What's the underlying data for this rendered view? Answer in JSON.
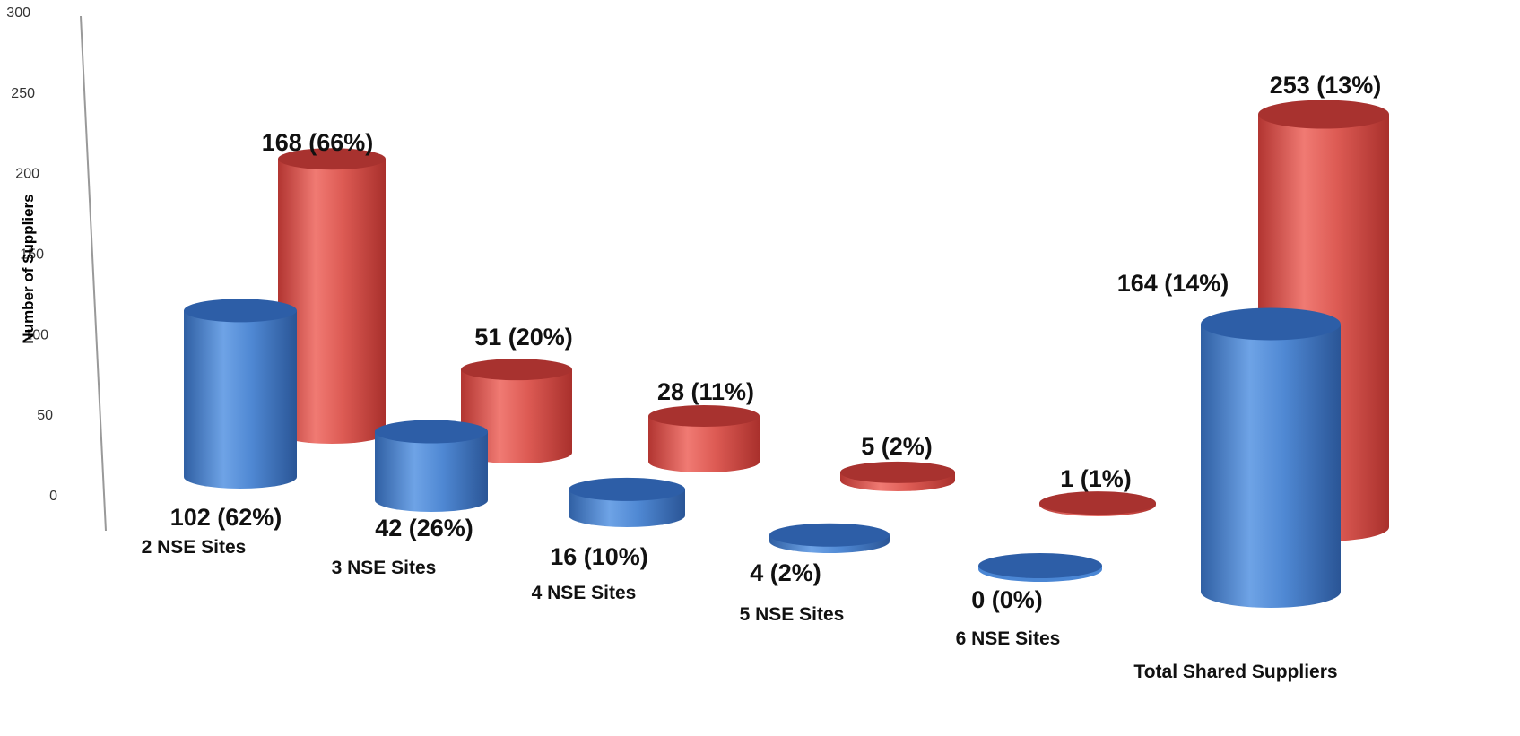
{
  "chart_data": {
    "type": "bar",
    "style": "3d-cylinder",
    "ylabel": "Number of Suppliers",
    "xlabel": "",
    "ylim": [
      0,
      300
    ],
    "yticks": [
      0,
      50,
      100,
      150,
      200,
      250,
      300
    ],
    "grid": false,
    "categories": [
      "2 NSE Sites",
      "3 NSE Sites",
      "4 NSE Sites",
      "5 NSE Sites",
      "6 NSE Sites",
      "Total Shared Suppliers"
    ],
    "series": [
      {
        "color": "#4a86d4",
        "values": [
          102,
          42,
          16,
          4,
          0,
          164
        ],
        "labels": [
          "102 (62%)",
          "42 (26%)",
          "16 (10%)",
          "4 (2%)",
          "0 (0%)",
          "164 (14%)"
        ]
      },
      {
        "color": "#e05550",
        "values": [
          168,
          51,
          28,
          5,
          1,
          253
        ],
        "labels": [
          "168 (66%)",
          "51 (20%)",
          "28 (11%)",
          "5 (2%)",
          "1 (1%)",
          "253 (13%)"
        ]
      }
    ]
  }
}
